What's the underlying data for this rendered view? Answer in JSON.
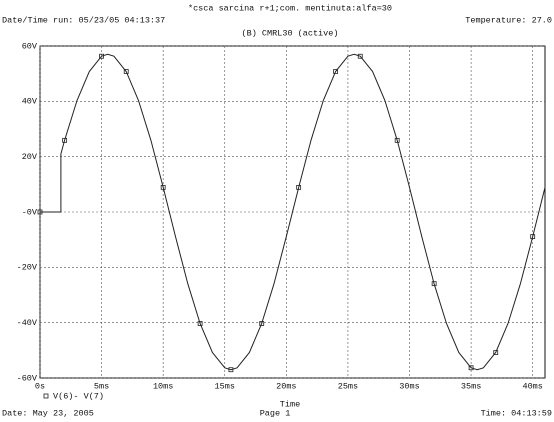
{
  "chart_data": {
    "type": "line",
    "title": "*csca sarcina r+1;com. mentinuta:alfa=30",
    "run_info": "Date/Time run: 05/23/05 04:13:37",
    "temperature": "Temperature: 27.0",
    "subtitle": "(B) CMRL30 (active)",
    "x_label": "Time",
    "footer_date": "Date: May 23, 2005",
    "footer_page": "Page 1",
    "footer_time": "Time: 04:13:59",
    "x": [
      0,
      1.7,
      1.7,
      2,
      3,
      4,
      5,
      5.5,
      6,
      7,
      8,
      9,
      10,
      11,
      12,
      13,
      14,
      15,
      15.5,
      16,
      17,
      18,
      19,
      20,
      21,
      22,
      23,
      24,
      25,
      25.5,
      26,
      27,
      28,
      29,
      30,
      31,
      32,
      33,
      34,
      35,
      35.5,
      36,
      37,
      38,
      39,
      40,
      41
    ],
    "series": [
      {
        "name": "V(6)- V(7)",
        "color": "#222222",
        "values": [
          0,
          0,
          21,
          25.9,
          40.3,
          50.8,
          56.3,
          57,
          56.3,
          50.8,
          40.3,
          25.9,
          8.9,
          -8.9,
          -25.9,
          -40.3,
          -50.8,
          -56.3,
          -57,
          -56.3,
          -50.8,
          -40.3,
          -25.9,
          -8.9,
          8.9,
          25.9,
          40.3,
          50.8,
          56.3,
          57,
          56.3,
          50.8,
          40.3,
          25.9,
          8.9,
          -8.9,
          -25.9,
          -40.3,
          -50.8,
          -56.3,
          -57,
          -56.3,
          -50.8,
          -40.3,
          -25.9,
          -8.9,
          8.9
        ]
      }
    ],
    "xlim": [
      0,
      41
    ],
    "xticks": [
      {
        "value": 0,
        "label": "0s"
      },
      {
        "value": 5,
        "label": "5ms"
      },
      {
        "value": 10,
        "label": "10ms"
      },
      {
        "value": 15,
        "label": "15ms"
      },
      {
        "value": 20,
        "label": "20ms"
      },
      {
        "value": 25,
        "label": "25ms"
      },
      {
        "value": 30,
        "label": "30ms"
      },
      {
        "value": 35,
        "label": "35ms"
      },
      {
        "value": 40,
        "label": "40ms"
      }
    ],
    "ylim": [
      -60,
      60
    ],
    "yticks": [
      {
        "value": -60,
        "label": "-60V"
      },
      {
        "value": -40,
        "label": "-40V"
      },
      {
        "value": -20,
        "label": "-20V"
      },
      {
        "value": 0,
        "label": "-0V"
      },
      {
        "value": 20,
        "label": "20V"
      },
      {
        "value": 40,
        "label": "40V"
      },
      {
        "value": 60,
        "label": "60V"
      }
    ],
    "grid": true
  }
}
